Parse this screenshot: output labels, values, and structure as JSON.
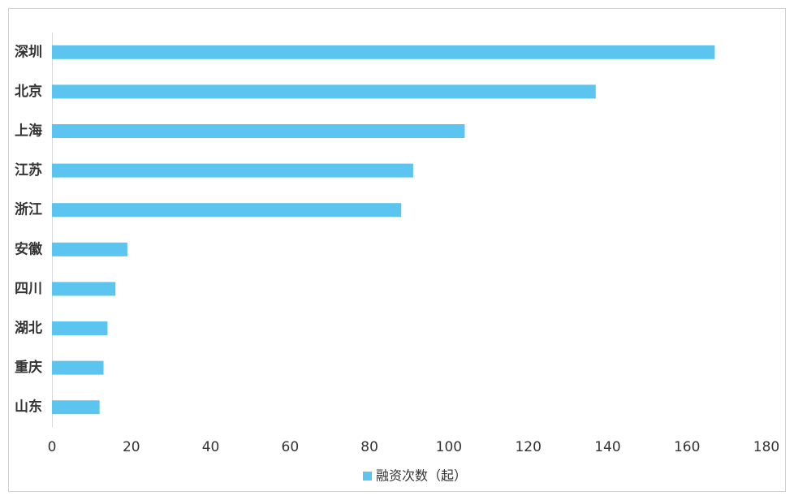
{
  "chart_data": {
    "type": "bar",
    "orientation": "horizontal",
    "categories": [
      "深圳",
      "北京",
      "上海",
      "江苏",
      "浙江",
      "安徽",
      "四川",
      "湖北",
      "重庆",
      "山东"
    ],
    "series": [
      {
        "name": "融资次数（起）",
        "color": "#5bc5f0",
        "values": [
          167,
          137,
          104,
          91,
          88,
          19,
          16,
          14,
          13,
          12
        ]
      }
    ],
    "xlim": [
      0,
      180
    ],
    "xticks": [
      0,
      20,
      40,
      60,
      80,
      100,
      120,
      140,
      160,
      180
    ],
    "legend": "bottom"
  }
}
